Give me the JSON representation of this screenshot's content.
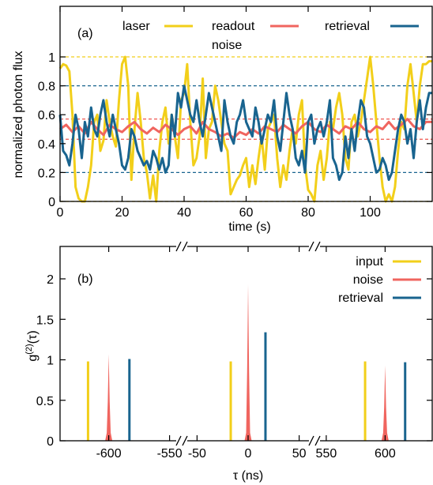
{
  "colors": {
    "laser": "#f2cf1a",
    "noise": "#f0655f",
    "retrieval": "#19648f",
    "axis": "#000000"
  },
  "chart_data": [
    {
      "panel_label": "(a)",
      "type": "line",
      "xlabel": "time (s)",
      "ylabel": "normalized photon flux",
      "xlim": [
        0,
        120
      ],
      "ylim": [
        0,
        1.35
      ],
      "x_ticks": [
        0,
        20,
        40,
        60,
        80,
        100
      ],
      "y_ticks": [
        0,
        0.2,
        0.4,
        0.6,
        0.8,
        1
      ],
      "tick_labels_x": [
        "0",
        "20",
        "40",
        "60",
        "80",
        "100"
      ],
      "tick_labels_y": [
        "0",
        "0.2",
        "0.4",
        "0.6",
        "0.8",
        "1"
      ],
      "legend_position": "top",
      "legend": {
        "laser": "laser",
        "noise": "readout noise",
        "retrieval": "retrieval"
      },
      "reference_lines": [
        {
          "y": 1.0,
          "series": "laser"
        },
        {
          "y": 0.0,
          "series": "laser"
        },
        {
          "y": 0.8,
          "series": "retrieval"
        },
        {
          "y": 0.2,
          "series": "retrieval"
        },
        {
          "y": 0.57,
          "series": "noise"
        },
        {
          "y": 0.43,
          "series": "noise"
        }
      ],
      "series": [
        {
          "key": "laser",
          "x": [
            0,
            1,
            2,
            3,
            4,
            5,
            6,
            7,
            8,
            9,
            10,
            11,
            12,
            13,
            14,
            15,
            16,
            17,
            18,
            19,
            20,
            21,
            22,
            23,
            24,
            25,
            26,
            27,
            28,
            29,
            30,
            31,
            32,
            33,
            34,
            35,
            36,
            37,
            38,
            39,
            40,
            41,
            42,
            43,
            44,
            45,
            46,
            47,
            48,
            49,
            50,
            51,
            52,
            53,
            54,
            55,
            56,
            57,
            58,
            59,
            60,
            61,
            62,
            63,
            64,
            65,
            66,
            67,
            68,
            69,
            70,
            71,
            72,
            73,
            74,
            75,
            76,
            77,
            78,
            79,
            80,
            81,
            82,
            83,
            84,
            85,
            86,
            87,
            88,
            89,
            90,
            91,
            92,
            93,
            94,
            95,
            96,
            97,
            98,
            99,
            100,
            101,
            102,
            103,
            104,
            105,
            106,
            107,
            108,
            109,
            110,
            111,
            112,
            113,
            114,
            115,
            116,
            117,
            118,
            119,
            120
          ],
          "y": [
            0.92,
            0.95,
            0.94,
            0.9,
            0.6,
            0.1,
            0.02,
            0.0,
            0.0,
            0.1,
            0.25,
            0.55,
            0.6,
            0.35,
            0.42,
            0.7,
            0.55,
            0.45,
            0.38,
            0.7,
            0.95,
            1.0,
            0.8,
            0.15,
            0.5,
            0.75,
            0.55,
            0.3,
            0.2,
            0.02,
            0.18,
            0.0,
            0.35,
            0.55,
            0.65,
            0.4,
            0.6,
            0.45,
            0.3,
            0.7,
            0.75,
            0.95,
            0.55,
            0.25,
            0.3,
            0.45,
            0.85,
            0.3,
            0.5,
            0.55,
            0.8,
            0.7,
            0.55,
            0.4,
            0.35,
            0.05,
            0.1,
            0.15,
            0.18,
            0.25,
            0.3,
            0.1,
            0.25,
            0.12,
            0.3,
            0.45,
            0.22,
            0.5,
            0.55,
            0.6,
            0.3,
            0.1,
            0.25,
            0.15,
            0.35,
            0.5,
            0.4,
            0.6,
            0.7,
            0.25,
            0.08,
            0.05,
            0.0,
            0.25,
            0.35,
            0.15,
            0.3,
            0.55,
            0.5,
            0.65,
            0.75,
            0.6,
            0.3,
            0.22,
            0.55,
            0.6,
            0.45,
            0.55,
            0.7,
            0.85,
            1.0,
            0.8,
            0.55,
            0.3,
            0.1,
            0.0,
            0.05,
            0.0,
            0.1,
            0.35,
            0.55,
            0.5,
            0.8,
            0.95,
            0.75,
            0.55,
            0.8,
            0.95,
            0.95,
            0.97,
            0.97
          ]
        },
        {
          "key": "noise",
          "x": [
            0,
            2,
            4,
            6,
            8,
            10,
            12,
            14,
            16,
            18,
            20,
            22,
            24,
            26,
            28,
            30,
            32,
            34,
            36,
            38,
            40,
            42,
            44,
            46,
            48,
            50,
            52,
            54,
            56,
            58,
            60,
            62,
            64,
            66,
            68,
            70,
            72,
            74,
            76,
            78,
            80,
            82,
            84,
            86,
            88,
            90,
            92,
            94,
            96,
            98,
            100,
            102,
            104,
            106,
            108,
            110,
            112,
            114,
            116,
            118,
            120
          ],
          "y": [
            0.5,
            0.53,
            0.48,
            0.52,
            0.47,
            0.55,
            0.5,
            0.46,
            0.53,
            0.5,
            0.48,
            0.52,
            0.55,
            0.5,
            0.47,
            0.51,
            0.48,
            0.53,
            0.5,
            0.46,
            0.5,
            0.52,
            0.47,
            0.55,
            0.5,
            0.48,
            0.45,
            0.47,
            0.44,
            0.48,
            0.46,
            0.5,
            0.47,
            0.52,
            0.5,
            0.48,
            0.53,
            0.5,
            0.47,
            0.52,
            0.55,
            0.5,
            0.48,
            0.53,
            0.5,
            0.47,
            0.52,
            0.5,
            0.55,
            0.5,
            0.48,
            0.52,
            0.5,
            0.55,
            0.5,
            0.53,
            0.57,
            0.52,
            0.5,
            0.55,
            0.55
          ]
        },
        {
          "key": "retrieval",
          "x": [
            0,
            1,
            2,
            3,
            4,
            5,
            6,
            7,
            8,
            9,
            10,
            11,
            12,
            13,
            14,
            15,
            16,
            17,
            18,
            19,
            20,
            21,
            22,
            23,
            24,
            25,
            26,
            27,
            28,
            29,
            30,
            31,
            32,
            33,
            34,
            35,
            36,
            37,
            38,
            39,
            40,
            41,
            42,
            43,
            44,
            45,
            46,
            47,
            48,
            49,
            50,
            51,
            52,
            53,
            54,
            55,
            56,
            57,
            58,
            59,
            60,
            61,
            62,
            63,
            64,
            65,
            66,
            67,
            68,
            69,
            70,
            71,
            72,
            73,
            74,
            75,
            76,
            77,
            78,
            79,
            80,
            81,
            82,
            83,
            84,
            85,
            86,
            87,
            88,
            89,
            90,
            91,
            92,
            93,
            94,
            95,
            96,
            97,
            98,
            99,
            100,
            101,
            102,
            103,
            104,
            105,
            106,
            107,
            108,
            109,
            110,
            111,
            112,
            113,
            114,
            115,
            116,
            117,
            118,
            119,
            120
          ],
          "y": [
            0.6,
            0.35,
            0.32,
            0.25,
            0.4,
            0.6,
            0.5,
            0.3,
            0.55,
            0.45,
            0.65,
            0.5,
            0.45,
            0.6,
            0.7,
            0.55,
            0.45,
            0.6,
            0.5,
            0.4,
            0.25,
            0.22,
            0.3,
            0.5,
            0.45,
            0.35,
            0.3,
            0.25,
            0.28,
            0.22,
            0.35,
            0.3,
            0.22,
            0.3,
            0.2,
            0.25,
            0.6,
            0.45,
            0.75,
            0.65,
            0.8,
            0.7,
            0.6,
            0.55,
            0.7,
            0.55,
            0.45,
            0.6,
            0.75,
            0.65,
            0.55,
            0.45,
            0.35,
            0.7,
            0.55,
            0.45,
            0.4,
            0.55,
            0.6,
            0.7,
            0.55,
            0.5,
            0.45,
            0.65,
            0.55,
            0.4,
            0.5,
            0.6,
            0.55,
            0.7,
            0.45,
            0.35,
            0.55,
            0.75,
            0.6,
            0.5,
            0.3,
            0.25,
            0.35,
            0.2,
            0.55,
            0.6,
            0.4,
            0.5,
            0.55,
            0.45,
            0.55,
            0.7,
            0.3,
            0.25,
            0.15,
            0.2,
            0.45,
            0.3,
            0.5,
            0.35,
            0.55,
            0.7,
            0.65,
            0.45,
            0.4,
            0.3,
            0.2,
            0.22,
            0.3,
            0.25,
            0.15,
            0.2,
            0.35,
            0.5,
            0.6,
            0.55,
            0.4,
            0.5,
            0.3,
            0.55,
            0.7,
            0.5,
            0.65,
            0.75,
            0.75
          ]
        }
      ]
    },
    {
      "panel_label": "(b)",
      "type": "bar",
      "xlabel": "τ (ns)",
      "ylabel": "g(2)(τ)",
      "ylabel_base": "g",
      "ylabel_sup": "(2)",
      "ylabel_arg": "(τ)",
      "ylim": [
        0,
        2.4
      ],
      "y_ticks": [
        0,
        0.5,
        1,
        1.5,
        2
      ],
      "tick_labels_y": [
        "0",
        "0.5",
        "1",
        "1.5",
        "2"
      ],
      "x_segments": [
        {
          "range": [
            -640,
            -540
          ],
          "ticks": [
            -600,
            -550
          ],
          "tick_labels": [
            "-600",
            "-550"
          ]
        },
        {
          "range": [
            -65,
            65
          ],
          "ticks": [
            -50,
            0,
            50
          ],
          "tick_labels": [
            "-50",
            "0",
            "50"
          ]
        },
        {
          "range": [
            540,
            640
          ],
          "ticks": [
            550,
            600
          ],
          "tick_labels": [
            "550",
            "600"
          ]
        }
      ],
      "axis_break": true,
      "legend_position": "top-right",
      "legend": {
        "laser": "input",
        "noise": "noise",
        "retrieval": "retrieval"
      },
      "peaks": [
        {
          "series": "laser",
          "tau": -617,
          "height": 0.98
        },
        {
          "series": "noise",
          "tau": -600,
          "height": 1.07
        },
        {
          "series": "retrieval",
          "tau": -583,
          "height": 1.01
        },
        {
          "series": "laser",
          "tau": -17,
          "height": 0.98
        },
        {
          "series": "noise",
          "tau": 0,
          "height": 1.93
        },
        {
          "series": "retrieval",
          "tau": 17,
          "height": 1.34
        },
        {
          "series": "laser",
          "tau": 583,
          "height": 0.98
        },
        {
          "series": "noise",
          "tau": 600,
          "height": 0.93
        },
        {
          "series": "retrieval",
          "tau": 617,
          "height": 0.97
        }
      ]
    }
  ]
}
